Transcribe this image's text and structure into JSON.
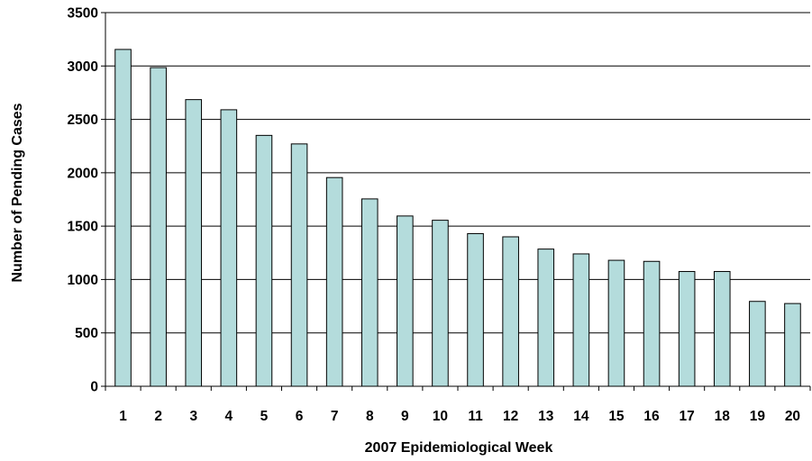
{
  "chart_data": {
    "type": "bar",
    "title": "",
    "xlabel": "2007 Epidemiological Week",
    "ylabel": "Number of Pending Cases",
    "categories": [
      "1",
      "2",
      "3",
      "4",
      "5",
      "6",
      "7",
      "8",
      "9",
      "10",
      "11",
      "12",
      "13",
      "14",
      "15",
      "16",
      "17",
      "18",
      "19",
      "20"
    ],
    "values": [
      3155,
      2985,
      2685,
      2590,
      2350,
      2270,
      1955,
      1755,
      1595,
      1555,
      1430,
      1400,
      1285,
      1240,
      1180,
      1170,
      1075,
      1075,
      795,
      775
    ],
    "ylim": [
      0,
      3500
    ],
    "yticks": [
      0,
      500,
      1000,
      1500,
      2000,
      2500,
      3000,
      3500
    ],
    "grid": "horizontal",
    "legend": "none",
    "colors": {
      "bar_fill": "#b4dcdc",
      "bar_stroke": "#000000",
      "grid": "#000000"
    }
  }
}
